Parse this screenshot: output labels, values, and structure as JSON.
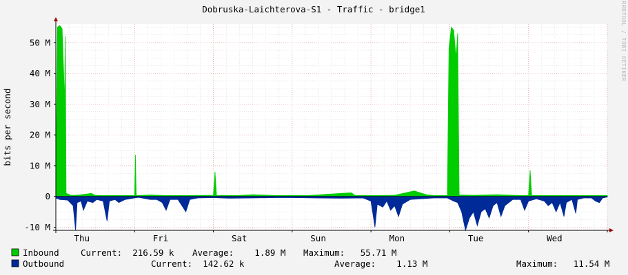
{
  "chart_data": {
    "type": "area",
    "title": "Dobruska-Laichterova-S1 - Traffic - bridge1",
    "ylabel": "bits per second",
    "watermark": "RRDTOOL / TOBI OETIKER",
    "ylim": [
      -11,
      56
    ],
    "yticks": [
      {
        "value": 50,
        "label": "50 M"
      },
      {
        "value": 40,
        "label": "40 M"
      },
      {
        "value": 30,
        "label": "30 M"
      },
      {
        "value": 20,
        "label": "20 M"
      },
      {
        "value": 10,
        "label": "10 M"
      },
      {
        "value": 0,
        "label": "0"
      },
      {
        "value": -10,
        "label": "-10 M"
      }
    ],
    "xlim": [
      0,
      7.0
    ],
    "xticks": [
      {
        "value": 0.33,
        "label": "Thu"
      },
      {
        "value": 1.33,
        "label": "Fri"
      },
      {
        "value": 2.33,
        "label": "Sat"
      },
      {
        "value": 3.33,
        "label": "Sun"
      },
      {
        "value": 4.33,
        "label": "Mon"
      },
      {
        "value": 5.33,
        "label": "Tue"
      },
      {
        "value": 6.33,
        "label": "Wed"
      }
    ],
    "series": [
      {
        "name": "Inbound",
        "color": "#00cc00",
        "points": [
          [
            0.0,
            0.3
          ],
          [
            0.02,
            55.0
          ],
          [
            0.05,
            55.5
          ],
          [
            0.08,
            54.5
          ],
          [
            0.1,
            40.0
          ],
          [
            0.11,
            30.0
          ],
          [
            0.12,
            52.0
          ],
          [
            0.13,
            1.0
          ],
          [
            0.2,
            0.3
          ],
          [
            0.3,
            0.5
          ],
          [
            0.45,
            1.0
          ],
          [
            0.5,
            0.4
          ],
          [
            0.6,
            0.3
          ],
          [
            0.8,
            0.3
          ],
          [
            1.0,
            0.3
          ],
          [
            1.01,
            13.5
          ],
          [
            1.02,
            0.3
          ],
          [
            1.2,
            0.5
          ],
          [
            1.4,
            0.3
          ],
          [
            1.6,
            0.3
          ],
          [
            2.0,
            0.4
          ],
          [
            2.02,
            8.0
          ],
          [
            2.04,
            0.3
          ],
          [
            2.3,
            0.3
          ],
          [
            2.5,
            0.6
          ],
          [
            2.8,
            0.3
          ],
          [
            3.0,
            0.3
          ],
          [
            3.2,
            0.3
          ],
          [
            3.5,
            0.8
          ],
          [
            3.75,
            1.2
          ],
          [
            3.8,
            0.3
          ],
          [
            4.0,
            0.3
          ],
          [
            4.3,
            0.4
          ],
          [
            4.55,
            1.8
          ],
          [
            4.7,
            0.6
          ],
          [
            4.8,
            0.3
          ],
          [
            4.97,
            0.3
          ],
          [
            4.99,
            48.0
          ],
          [
            5.02,
            55.0
          ],
          [
            5.05,
            54.0
          ],
          [
            5.08,
            45.0
          ],
          [
            5.1,
            53.0
          ],
          [
            5.12,
            0.5
          ],
          [
            5.3,
            0.4
          ],
          [
            5.6,
            0.6
          ],
          [
            5.9,
            0.3
          ],
          [
            6.0,
            0.3
          ],
          [
            6.02,
            8.5
          ],
          [
            6.04,
            0.3
          ],
          [
            6.3,
            0.3
          ],
          [
            6.6,
            0.3
          ],
          [
            6.9,
            0.3
          ],
          [
            7.0,
            0.3
          ]
        ]
      },
      {
        "name": "Outbound",
        "color": "#002a97",
        "points": [
          [
            0.0,
            -0.5
          ],
          [
            0.05,
            -1.0
          ],
          [
            0.15,
            -1.2
          ],
          [
            0.22,
            -3.0
          ],
          [
            0.25,
            -11.0
          ],
          [
            0.27,
            -2.0
          ],
          [
            0.32,
            -1.5
          ],
          [
            0.35,
            -4.5
          ],
          [
            0.4,
            -1.5
          ],
          [
            0.47,
            -2.0
          ],
          [
            0.52,
            -1.0
          ],
          [
            0.6,
            -1.5
          ],
          [
            0.65,
            -8.0
          ],
          [
            0.68,
            -1.5
          ],
          [
            0.75,
            -1.0
          ],
          [
            0.8,
            -2.0
          ],
          [
            0.88,
            -1.0
          ],
          [
            1.0,
            -0.5
          ],
          [
            1.05,
            -0.3
          ],
          [
            1.2,
            -1.0
          ],
          [
            1.28,
            -1.0
          ],
          [
            1.35,
            -2.0
          ],
          [
            1.4,
            -4.5
          ],
          [
            1.45,
            -1.0
          ],
          [
            1.55,
            -1.0
          ],
          [
            1.65,
            -5.0
          ],
          [
            1.7,
            -1.0
          ],
          [
            1.8,
            -0.5
          ],
          [
            2.0,
            -0.4
          ],
          [
            2.1,
            -0.5
          ],
          [
            2.2,
            -0.6
          ],
          [
            2.5,
            -0.5
          ],
          [
            2.8,
            -0.4
          ],
          [
            3.0,
            -0.4
          ],
          [
            3.3,
            -0.5
          ],
          [
            3.6,
            -0.6
          ],
          [
            3.9,
            -0.5
          ],
          [
            4.0,
            -1.5
          ],
          [
            4.05,
            -10.0
          ],
          [
            4.08,
            -2.5
          ],
          [
            4.15,
            -3.5
          ],
          [
            4.2,
            -1.5
          ],
          [
            4.25,
            -4.5
          ],
          [
            4.3,
            -3.0
          ],
          [
            4.35,
            -6.5
          ],
          [
            4.4,
            -2.5
          ],
          [
            4.5,
            -1.0
          ],
          [
            4.6,
            -0.8
          ],
          [
            4.8,
            -0.5
          ],
          [
            4.97,
            -0.5
          ],
          [
            5.05,
            -1.5
          ],
          [
            5.1,
            -2.0
          ],
          [
            5.15,
            -5.0
          ],
          [
            5.2,
            -11.0
          ],
          [
            5.25,
            -7.0
          ],
          [
            5.3,
            -5.0
          ],
          [
            5.35,
            -9.5
          ],
          [
            5.4,
            -5.0
          ],
          [
            5.45,
            -4.0
          ],
          [
            5.5,
            -7.0
          ],
          [
            5.55,
            -3.0
          ],
          [
            5.6,
            -2.0
          ],
          [
            5.65,
            -6.5
          ],
          [
            5.7,
            -3.0
          ],
          [
            5.8,
            -1.0
          ],
          [
            5.9,
            -1.0
          ],
          [
            5.95,
            -4.5
          ],
          [
            6.0,
            -1.5
          ],
          [
            6.1,
            -0.8
          ],
          [
            6.2,
            -1.5
          ],
          [
            6.25,
            -3.0
          ],
          [
            6.3,
            -2.0
          ],
          [
            6.35,
            -5.0
          ],
          [
            6.4,
            -2.0
          ],
          [
            6.45,
            -6.5
          ],
          [
            6.48,
            -2.0
          ],
          [
            6.55,
            -1.0
          ],
          [
            6.6,
            -5.5
          ],
          [
            6.62,
            -1.0
          ],
          [
            6.7,
            -0.5
          ],
          [
            6.8,
            -0.5
          ],
          [
            6.85,
            -1.5
          ],
          [
            6.9,
            -2.0
          ],
          [
            6.94,
            -0.5
          ],
          [
            7.0,
            -0.2
          ]
        ]
      }
    ]
  },
  "legend": [
    {
      "name": "Inbound",
      "color": "#00cc00",
      "current": "Current:  216.59 k",
      "average": "Average:    1.89 M",
      "maximum": "Maximum:   55.71 M"
    },
    {
      "name": "Outbound",
      "color": "#002a97",
      "current": "Current:  142.62 k",
      "average": "Average:    1.13 M",
      "maximum": "Maximum:   11.54 M"
    }
  ]
}
